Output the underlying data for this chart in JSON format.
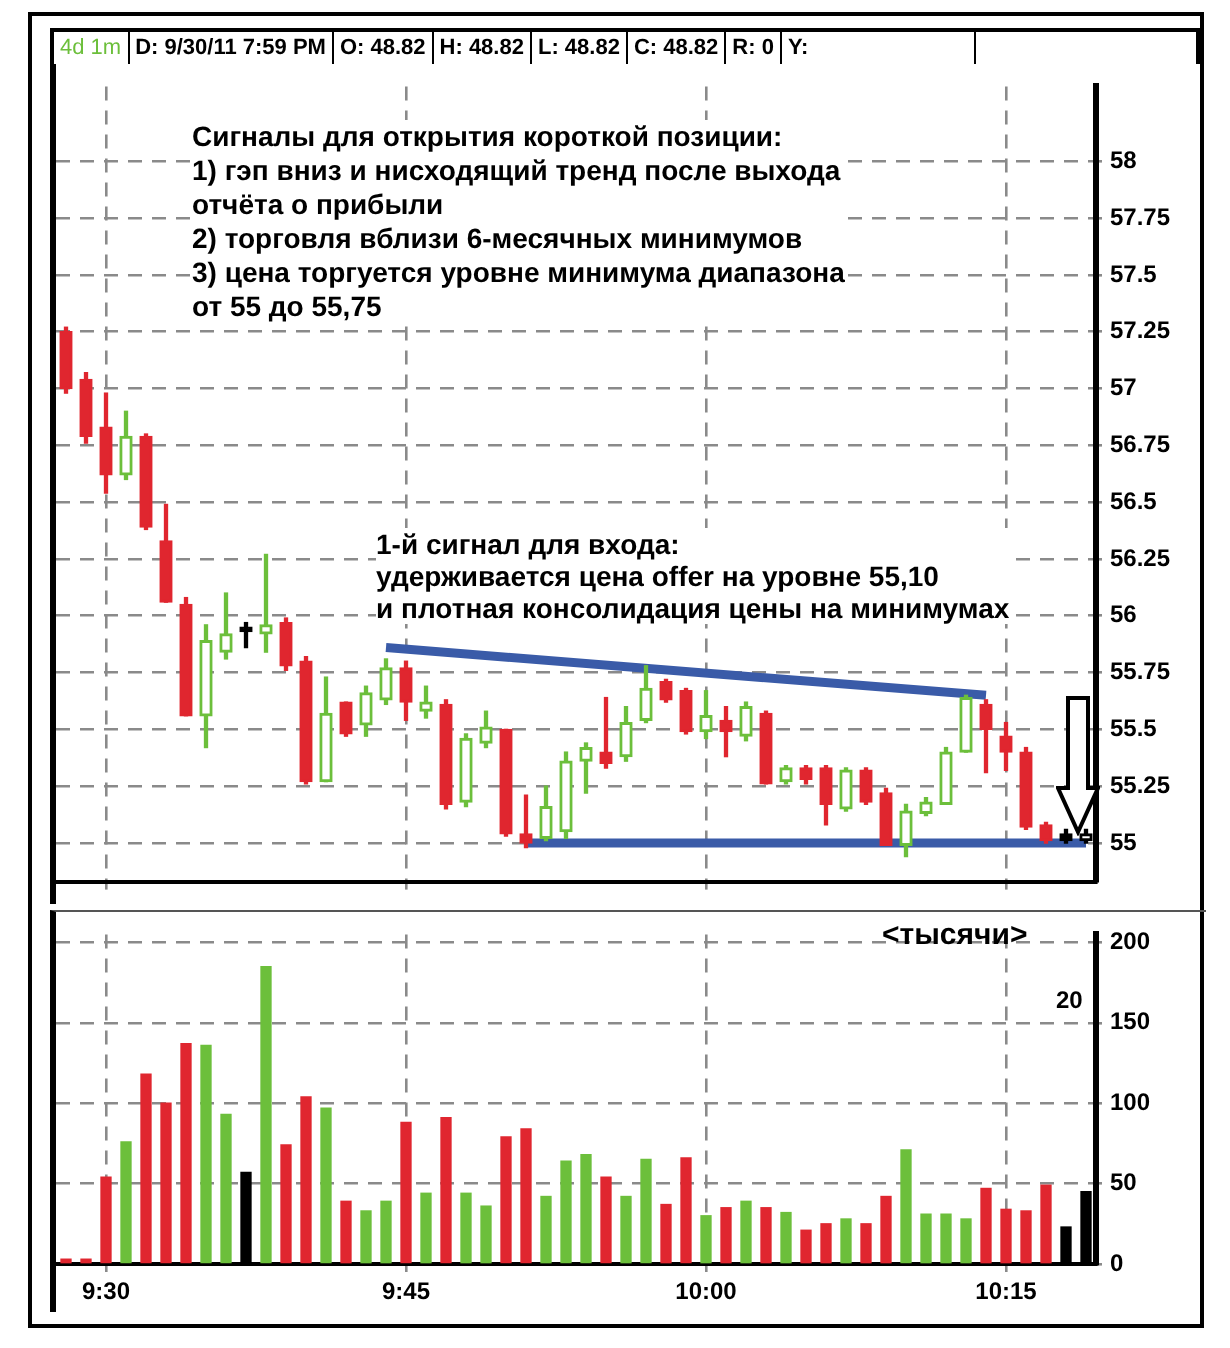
{
  "chart_data": [
    {
      "type": "other",
      "annotations": [
        "4d 1m",
        "D: 9/30/11 7:59 PM",
        "O: 48.82",
        "H: 48.82",
        "L: 48.82",
        "C: 48.82",
        "R: 0",
        "Y:"
      ]
    },
    {
      "type": "candlestick",
      "categories": [
        null,
        null,
        null,
        null,
        null,
        null,
        null,
        null,
        null,
        null,
        null,
        null,
        null,
        null,
        null,
        null,
        null,
        null,
        null,
        null,
        null,
        null,
        null,
        null,
        null,
        null,
        null,
        null,
        null,
        null,
        null,
        null,
        null,
        null,
        null,
        null,
        null,
        null,
        null,
        null,
        null,
        null,
        null,
        null,
        null,
        null,
        null,
        null,
        null,
        null,
        null,
        null
      ],
      "ohlc": [
        [
          57.25,
          57.27,
          56.98,
          57.0
        ],
        [
          57.04,
          57.07,
          56.76,
          56.79
        ],
        [
          56.83,
          56.98,
          56.54,
          56.62
        ],
        [
          56.62,
          56.9,
          56.6,
          56.79
        ],
        [
          56.79,
          56.8,
          56.38,
          56.39
        ],
        [
          56.33,
          56.49,
          56.06,
          56.06
        ],
        [
          56.05,
          56.08,
          55.56,
          55.56
        ],
        [
          55.56,
          55.96,
          55.42,
          55.89
        ],
        [
          55.84,
          56.1,
          55.81,
          55.92
        ],
        [
          55.95,
          55.97,
          55.86,
          55.93
        ],
        [
          55.92,
          56.27,
          55.84,
          55.96
        ],
        [
          55.97,
          55.99,
          55.76,
          55.78
        ],
        [
          55.8,
          55.82,
          55.26,
          55.27
        ],
        [
          55.27,
          55.73,
          55.27,
          55.57
        ],
        [
          55.62,
          55.62,
          55.47,
          55.48
        ],
        [
          55.52,
          55.69,
          55.47,
          55.66
        ],
        [
          55.63,
          55.81,
          55.61,
          55.77
        ],
        [
          55.77,
          55.8,
          55.54,
          55.62
        ],
        [
          55.58,
          55.69,
          55.55,
          55.62
        ],
        [
          55.61,
          55.63,
          55.15,
          55.17
        ],
        [
          55.18,
          55.48,
          55.16,
          55.46
        ],
        [
          55.44,
          55.58,
          55.42,
          55.51
        ],
        [
          55.5,
          55.5,
          55.03,
          55.04
        ],
        [
          55.04,
          55.21,
          54.98,
          55.0
        ],
        [
          55.02,
          55.25,
          55.01,
          55.16
        ],
        [
          55.05,
          55.4,
          55.02,
          55.36
        ],
        [
          55.36,
          55.44,
          55.22,
          55.42
        ],
        [
          55.4,
          55.64,
          55.33,
          55.35
        ],
        [
          55.38,
          55.6,
          55.36,
          55.53
        ],
        [
          55.54,
          55.78,
          55.53,
          55.68
        ],
        [
          55.71,
          55.72,
          55.62,
          55.63
        ],
        [
          55.67,
          55.68,
          55.48,
          55.49
        ],
        [
          55.49,
          55.67,
          55.46,
          55.56
        ],
        [
          55.54,
          55.6,
          55.38,
          55.49
        ],
        [
          55.47,
          55.62,
          55.45,
          55.6
        ],
        [
          55.57,
          55.58,
          55.26,
          55.26
        ],
        [
          55.27,
          55.34,
          55.26,
          55.33
        ],
        [
          55.33,
          55.34,
          55.26,
          55.28
        ],
        [
          55.33,
          55.34,
          55.08,
          55.17
        ],
        [
          55.15,
          55.33,
          55.14,
          55.32
        ],
        [
          55.32,
          55.33,
          55.17,
          55.18
        ],
        [
          55.22,
          55.24,
          54.99,
          54.99
        ],
        [
          54.99,
          55.17,
          54.94,
          55.14
        ],
        [
          55.13,
          55.2,
          55.12,
          55.18
        ],
        [
          55.17,
          55.42,
          55.17,
          55.4
        ],
        [
          55.4,
          55.65,
          55.4,
          55.64
        ],
        [
          55.61,
          55.63,
          55.31,
          55.5
        ],
        [
          55.47,
          55.53,
          55.32,
          55.4
        ],
        [
          55.4,
          55.42,
          55.06,
          55.07
        ],
        [
          55.08,
          55.09,
          55.0,
          55.01
        ],
        [
          55.04,
          55.06,
          55.0,
          55.01
        ],
        [
          55.01,
          55.06,
          55.0,
          55.04
        ]
      ],
      "colors": [
        "#e0262f",
        "#e0262f",
        "#e0262f",
        "#6cbf3b",
        "#e0262f",
        "#e0262f",
        "#e0262f",
        "#6cbf3b",
        "#6cbf3b",
        "#000000",
        "#6cbf3b",
        "#e0262f",
        "#e0262f",
        "#6cbf3b",
        "#e0262f",
        "#6cbf3b",
        "#6cbf3b",
        "#e0262f",
        "#6cbf3b",
        "#e0262f",
        "#6cbf3b",
        "#6cbf3b",
        "#e0262f",
        "#e0262f",
        "#6cbf3b",
        "#6cbf3b",
        "#6cbf3b",
        "#e0262f",
        "#6cbf3b",
        "#6cbf3b",
        "#e0262f",
        "#e0262f",
        "#6cbf3b",
        "#e0262f",
        "#6cbf3b",
        "#e0262f",
        "#6cbf3b",
        "#e0262f",
        "#e0262f",
        "#6cbf3b",
        "#e0262f",
        "#e0262f",
        "#6cbf3b",
        "#6cbf3b",
        "#6cbf3b",
        "#6cbf3b",
        "#e0262f",
        "#e0262f",
        "#e0262f",
        "#e0262f",
        "#000000",
        "#000000"
      ],
      "series": [
        {
          "type": "line",
          "color": "#3a5ba8",
          "values": [
            null,
            null,
            null,
            null,
            null,
            null,
            null,
            null,
            null,
            null,
            null,
            null,
            null,
            null,
            null,
            null,
            55.86,
            null,
            null,
            null,
            null,
            null,
            null,
            null,
            null,
            null,
            null,
            null,
            null,
            null,
            null,
            null,
            null,
            null,
            null,
            null,
            null,
            null,
            null,
            null,
            null,
            null,
            null,
            null,
            null,
            null,
            55.65,
            null,
            null,
            null,
            null,
            null
          ]
        },
        {
          "type": "line",
          "color": "#3a5ba8",
          "values": [
            null,
            null,
            null,
            null,
            null,
            null,
            null,
            null,
            null,
            null,
            null,
            null,
            null,
            null,
            null,
            null,
            null,
            null,
            null,
            null,
            null,
            null,
            null,
            55.0,
            null,
            null,
            null,
            null,
            null,
            null,
            null,
            null,
            null,
            null,
            null,
            null,
            null,
            null,
            null,
            null,
            null,
            null,
            null,
            null,
            null,
            null,
            null,
            null,
            null,
            null,
            null,
            55.0
          ]
        }
      ],
      "marker": "none",
      "ylim": [
        54.83,
        58.33
      ],
      "yticks": [
        55,
        55.25,
        55.5,
        55.75,
        56,
        56.25,
        56.5,
        56.75,
        57,
        57.25,
        57.5,
        57.75,
        58
      ],
      "grid": true,
      "tick_labels": "y",
      "annotations": [
        "Сигналы для открытия короткой позиции:\n1) гэп вниз и нисходящий тренд после выхода\nотчёта о прибыли\n2) торговля вблизи 6-месячных минимумов\n3) цена торгуется уровне минимума диапазона\nот 55 до 55,75",
        "1-й сигнал для входа:\nудерживается цена offer на уровне 55,10\nи плотная консолидация цены на минимумах"
      ]
    },
    {
      "type": "bar",
      "categories": [
        null,
        null,
        "9:30",
        null,
        null,
        null,
        null,
        null,
        null,
        null,
        null,
        null,
        null,
        null,
        null,
        null,
        null,
        "9:45",
        null,
        null,
        null,
        null,
        null,
        null,
        null,
        null,
        null,
        null,
        null,
        null,
        null,
        null,
        "10:00",
        null,
        null,
        null,
        null,
        null,
        null,
        null,
        null,
        null,
        null,
        null,
        null,
        null,
        null,
        "10:15",
        null,
        null,
        null,
        null
      ],
      "values": [
        3,
        3,
        54,
        76,
        118,
        100,
        137,
        136,
        93,
        57,
        185,
        74,
        104,
        97,
        39,
        33,
        39,
        88,
        44,
        91,
        44,
        36,
        79,
        84,
        42,
        64,
        68,
        54,
        42,
        65,
        37,
        66,
        30,
        35,
        39,
        35,
        32,
        21,
        25,
        28,
        25,
        42,
        71,
        31,
        31,
        28,
        47,
        34,
        33,
        49,
        23,
        45
      ],
      "colors": [
        "#e0262f",
        "#e0262f",
        "#e0262f",
        "#6cbf3b",
        "#e0262f",
        "#e0262f",
        "#e0262f",
        "#6cbf3b",
        "#6cbf3b",
        "#000000",
        "#6cbf3b",
        "#e0262f",
        "#e0262f",
        "#6cbf3b",
        "#e0262f",
        "#6cbf3b",
        "#6cbf3b",
        "#e0262f",
        "#6cbf3b",
        "#e0262f",
        "#6cbf3b",
        "#6cbf3b",
        "#e0262f",
        "#e0262f",
        "#6cbf3b",
        "#6cbf3b",
        "#6cbf3b",
        "#e0262f",
        "#6cbf3b",
        "#6cbf3b",
        "#e0262f",
        "#e0262f",
        "#6cbf3b",
        "#e0262f",
        "#6cbf3b",
        "#e0262f",
        "#6cbf3b",
        "#e0262f",
        "#e0262f",
        "#6cbf3b",
        "#e0262f",
        "#e0262f",
        "#6cbf3b",
        "#6cbf3b",
        "#6cbf3b",
        "#6cbf3b",
        "#e0262f",
        "#e0262f",
        "#e0262f",
        "#e0262f",
        "#000000",
        "#000000"
      ],
      "ylim": [
        0,
        205
      ],
      "yticks": [
        0,
        50,
        100,
        150,
        200
      ],
      "grid": true,
      "annotations": [
        "<тысячи>",
        "20"
      ]
    }
  ]
}
